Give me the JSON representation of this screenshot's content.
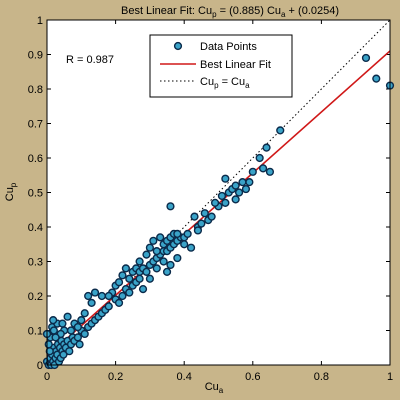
{
  "chart_data": {
    "type": "scatter",
    "title": {
      "prefix": "Best Linear Fit:  Cu",
      "sub1": "p",
      "mid": " = (0.885) Cu",
      "sub2": "a",
      "suffix": " + (0.0254)"
    },
    "xlabel": {
      "main": "Cu",
      "sub": "a"
    },
    "ylabel": {
      "main": "Cu",
      "sub": "p"
    },
    "annotation": "R  = 0.987",
    "xlim": [
      0,
      1
    ],
    "ylim": [
      0,
      1
    ],
    "xticks": [
      "0",
      "0.2",
      "0.4",
      "0.6",
      "0.8",
      "1"
    ],
    "yticks": [
      "0",
      "0.1",
      "0.2",
      "0.3",
      "0.4",
      "0.5",
      "0.6",
      "0.7",
      "0.8",
      "0.9",
      "1"
    ],
    "legend": {
      "placement": "top-center",
      "entries": [
        {
          "label": "Data Points"
        },
        {
          "label": "Best Linear Fit"
        },
        {
          "label_main": "Cu",
          "label_sub1": "p",
          "label_mid": " = Cu",
          "label_sub2": "a"
        }
      ]
    },
    "fit": {
      "slope": 0.885,
      "intercept": 0.0254
    },
    "colors": {
      "background": "#c8b58a",
      "plot_bg": "#ffffff",
      "marker_edge": "#0a2a4a",
      "marker_fill": "#3aa3c8",
      "fit_line": "#d01818",
      "identity_line": "#000000"
    },
    "series": [
      {
        "name": "Data Points",
        "points": [
          [
            0.0,
            0.01
          ],
          [
            0.005,
            0.0
          ],
          [
            0.01,
            0.02
          ],
          [
            0.012,
            0.0
          ],
          [
            0.015,
            0.03
          ],
          [
            0.018,
            0.01
          ],
          [
            0.02,
            0.05
          ],
          [
            0.022,
            0.0
          ],
          [
            0.025,
            0.02
          ],
          [
            0.027,
            0.04
          ],
          [
            0.03,
            0.03
          ],
          [
            0.032,
            0.06
          ],
          [
            0.035,
            0.01
          ],
          [
            0.038,
            0.05
          ],
          [
            0.04,
            0.02
          ],
          [
            0.042,
            0.07
          ],
          [
            0.045,
            0.04
          ],
          [
            0.048,
            0.03
          ],
          [
            0.05,
            0.06
          ],
          [
            0.055,
            0.05
          ],
          [
            0.06,
            0.07
          ],
          [
            0.065,
            0.04
          ],
          [
            0.07,
            0.06
          ],
          [
            0.075,
            0.08
          ],
          [
            0.08,
            0.07
          ],
          [
            0.01,
            0.08
          ],
          [
            0.015,
            0.11
          ],
          [
            0.02,
            0.1
          ],
          [
            0.03,
            0.12
          ],
          [
            0.05,
            0.1
          ],
          [
            0.06,
            0.14
          ],
          [
            0.04,
            0.09
          ],
          [
            0.008,
            0.04
          ],
          [
            0.025,
            0.08
          ],
          [
            0.07,
            0.1
          ],
          [
            0.09,
            0.08
          ],
          [
            0.1,
            0.1
          ],
          [
            0.11,
            0.09
          ],
          [
            0.12,
            0.11
          ],
          [
            0.13,
            0.12
          ],
          [
            0.14,
            0.13
          ],
          [
            0.15,
            0.14
          ],
          [
            0.16,
            0.15
          ],
          [
            0.17,
            0.16
          ],
          [
            0.18,
            0.17
          ],
          [
            0.12,
            0.2
          ],
          [
            0.13,
            0.18
          ],
          [
            0.14,
            0.21
          ],
          [
            0.1,
            0.13
          ],
          [
            0.11,
            0.15
          ],
          [
            0.08,
            0.12
          ],
          [
            0.09,
            0.11
          ],
          [
            0.2,
            0.19
          ],
          [
            0.21,
            0.18
          ],
          [
            0.22,
            0.2
          ],
          [
            0.23,
            0.22
          ],
          [
            0.24,
            0.21
          ],
          [
            0.25,
            0.23
          ],
          [
            0.26,
            0.24
          ],
          [
            0.27,
            0.25
          ],
          [
            0.2,
            0.23
          ],
          [
            0.22,
            0.26
          ],
          [
            0.24,
            0.25
          ],
          [
            0.25,
            0.27
          ],
          [
            0.26,
            0.28
          ],
          [
            0.27,
            0.27
          ],
          [
            0.28,
            0.28
          ],
          [
            0.29,
            0.27
          ],
          [
            0.3,
            0.29
          ],
          [
            0.31,
            0.3
          ],
          [
            0.32,
            0.31
          ],
          [
            0.33,
            0.32
          ],
          [
            0.34,
            0.33
          ],
          [
            0.35,
            0.33
          ],
          [
            0.36,
            0.34
          ],
          [
            0.37,
            0.35
          ],
          [
            0.38,
            0.36
          ],
          [
            0.39,
            0.37
          ],
          [
            0.29,
            0.32
          ],
          [
            0.3,
            0.34
          ],
          [
            0.31,
            0.36
          ],
          [
            0.32,
            0.33
          ],
          [
            0.33,
            0.37
          ],
          [
            0.34,
            0.35
          ],
          [
            0.35,
            0.36
          ],
          [
            0.36,
            0.37
          ],
          [
            0.37,
            0.38
          ],
          [
            0.38,
            0.38
          ],
          [
            0.3,
            0.25
          ],
          [
            0.32,
            0.28
          ],
          [
            0.34,
            0.3
          ],
          [
            0.36,
            0.29
          ],
          [
            0.28,
            0.22
          ],
          [
            0.38,
            0.31
          ],
          [
            0.35,
            0.27
          ],
          [
            0.4,
            0.37
          ],
          [
            0.41,
            0.38
          ],
          [
            0.42,
            0.34
          ],
          [
            0.44,
            0.4
          ],
          [
            0.45,
            0.41
          ],
          [
            0.47,
            0.42
          ],
          [
            0.48,
            0.43
          ],
          [
            0.5,
            0.46
          ],
          [
            0.52,
            0.47
          ],
          [
            0.53,
            0.5
          ],
          [
            0.54,
            0.51
          ],
          [
            0.55,
            0.52
          ],
          [
            0.56,
            0.5
          ],
          [
            0.57,
            0.53
          ],
          [
            0.58,
            0.51
          ],
          [
            0.46,
            0.44
          ],
          [
            0.49,
            0.47
          ],
          [
            0.51,
            0.49
          ],
          [
            0.55,
            0.48
          ],
          [
            0.6,
            0.56
          ],
          [
            0.62,
            0.6
          ],
          [
            0.64,
            0.63
          ],
          [
            0.65,
            0.56
          ],
          [
            0.68,
            0.68
          ],
          [
            0.43,
            0.43
          ],
          [
            0.36,
            0.46
          ],
          [
            0.59,
            0.53
          ],
          [
            0.63,
            0.57
          ],
          [
            0.44,
            0.39
          ],
          [
            0.52,
            0.54
          ],
          [
            0.93,
            0.89
          ],
          [
            0.96,
            0.83
          ],
          [
            1.0,
            0.81
          ],
          [
            0.0,
            0.09
          ],
          [
            0.005,
            0.06
          ],
          [
            0.018,
            0.13
          ],
          [
            0.045,
            0.12
          ],
          [
            0.095,
            0.06
          ],
          [
            0.16,
            0.2
          ],
          [
            0.19,
            0.21
          ],
          [
            0.21,
            0.24
          ],
          [
            0.18,
            0.2
          ],
          [
            0.27,
            0.3
          ],
          [
            0.23,
            0.28
          ],
          [
            0.4,
            0.35
          ]
        ]
      }
    ]
  }
}
